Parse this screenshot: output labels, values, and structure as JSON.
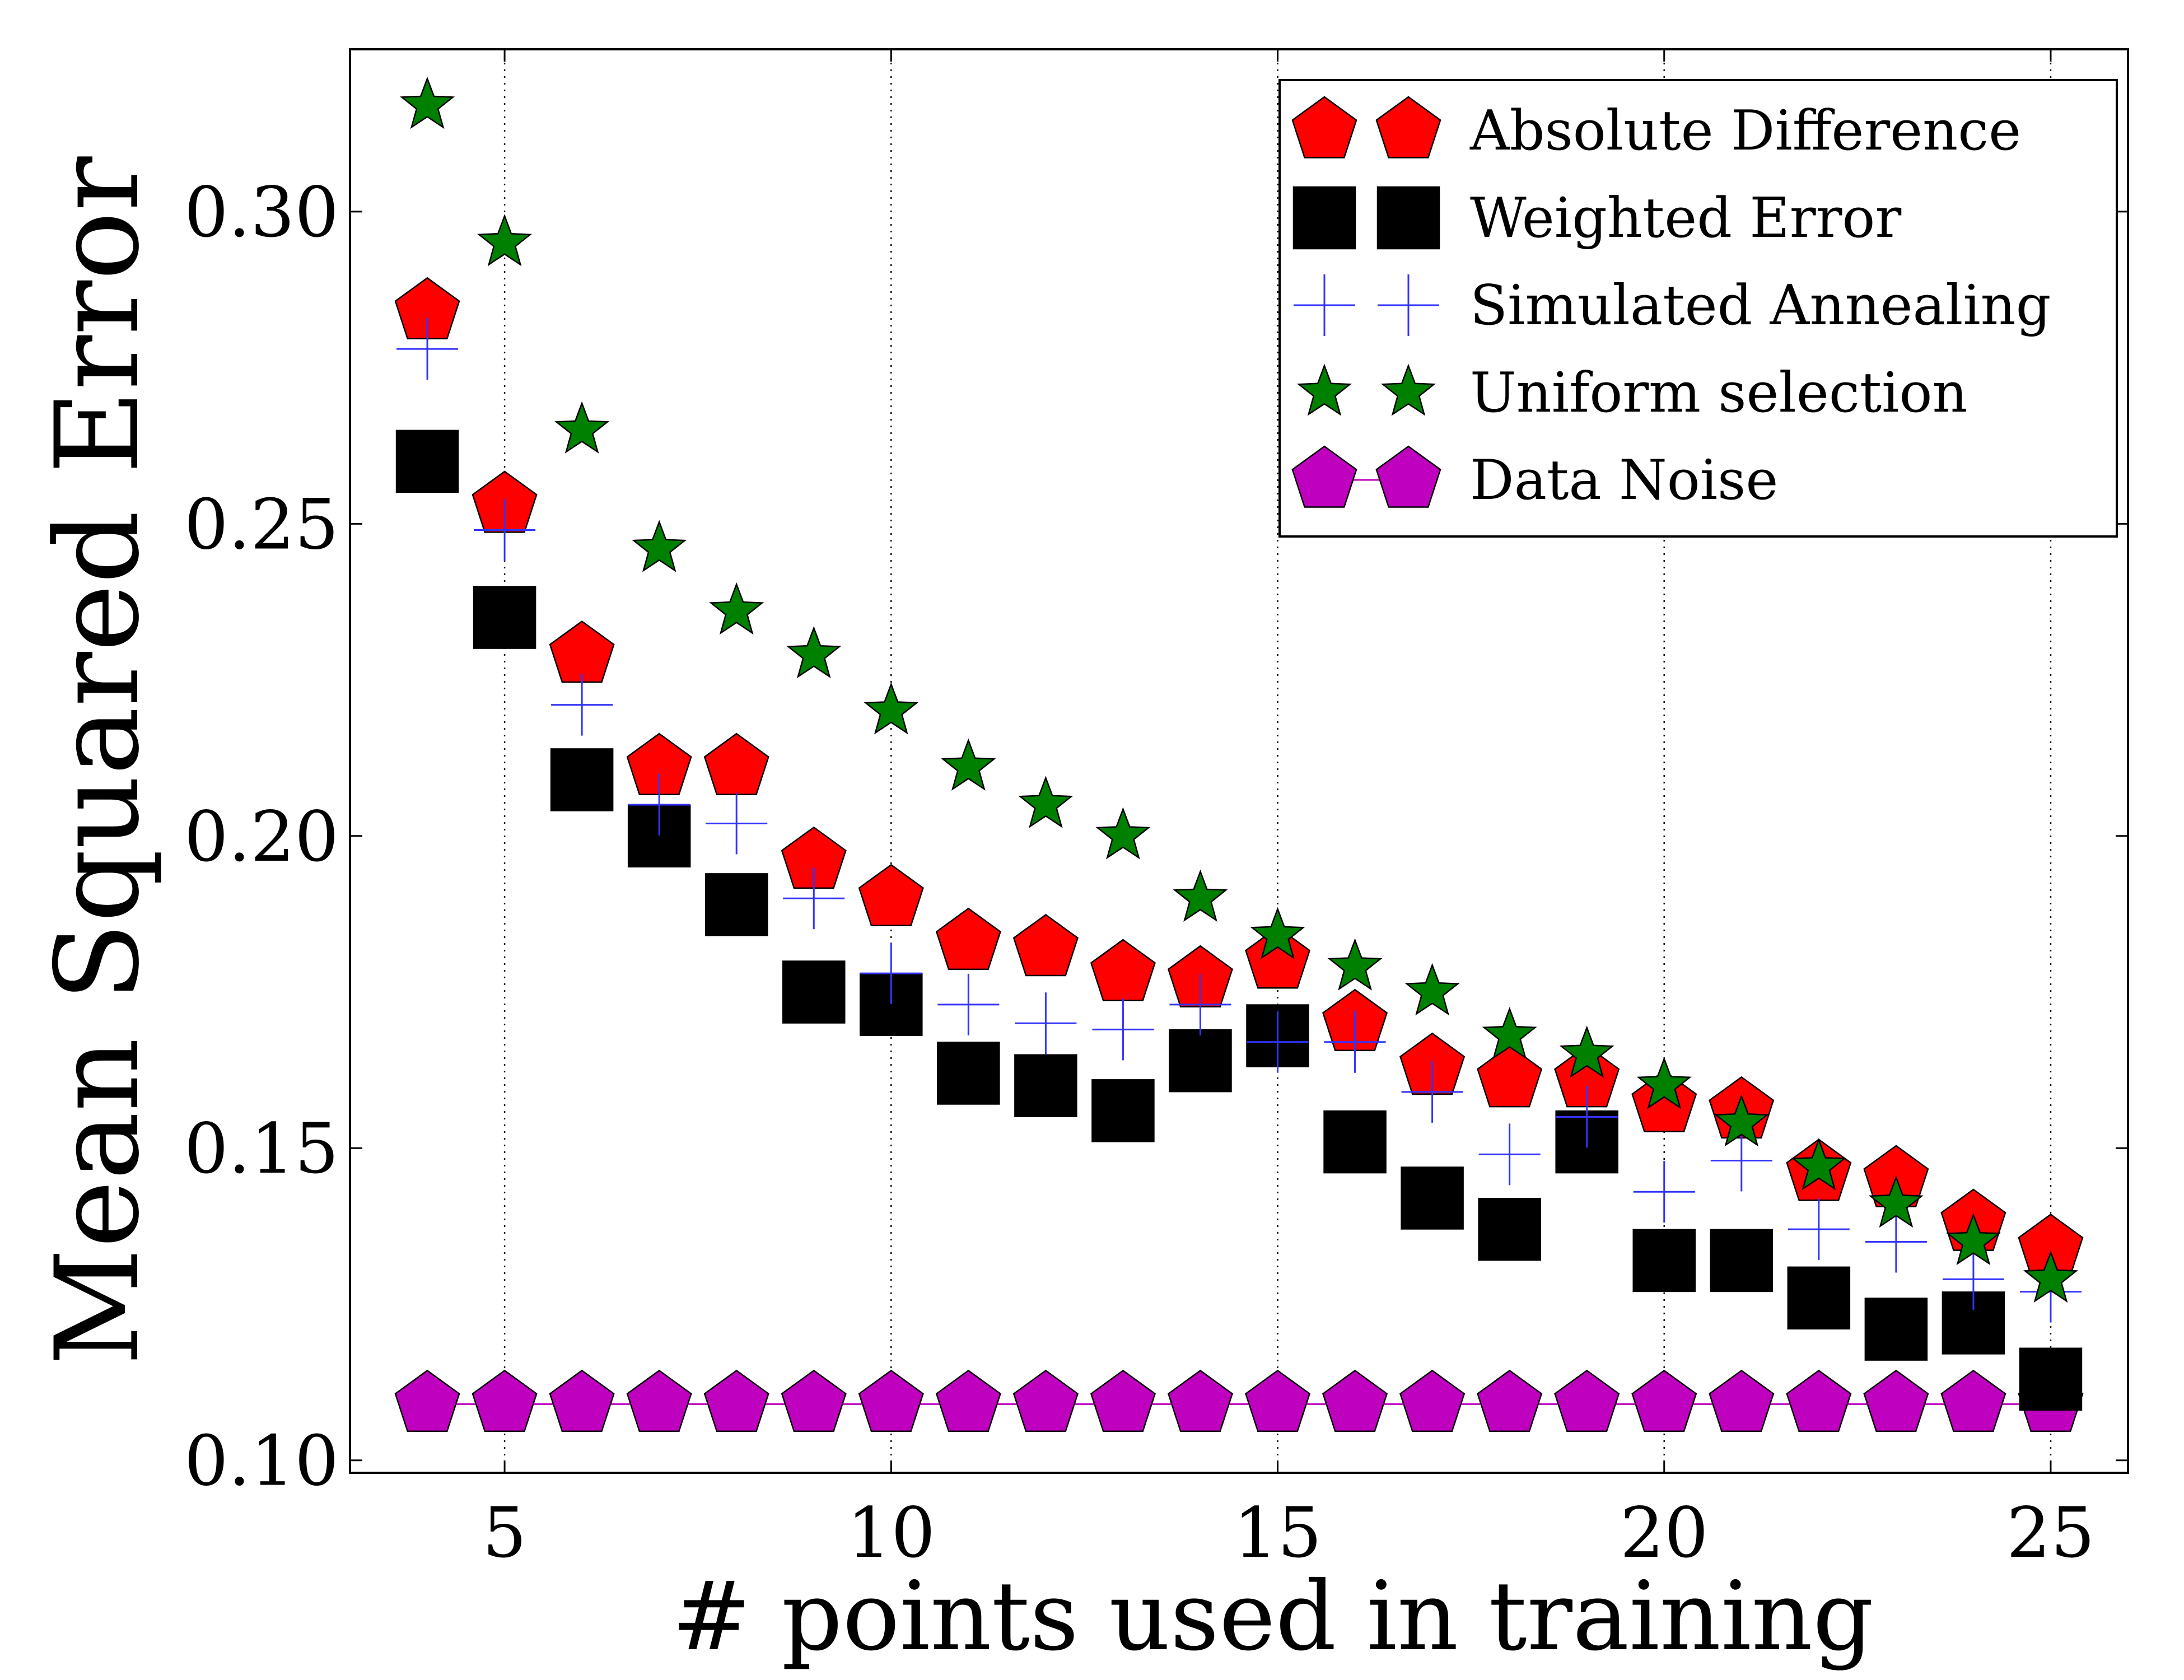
{
  "chart_data": {
    "type": "scatter",
    "xlabel": "# points used in training",
    "ylabel": "Mean Squared Error",
    "xlim": [
      3,
      26
    ],
    "ylim": [
      0.098,
      0.326
    ],
    "xticks": [
      5,
      10,
      15,
      20,
      25
    ],
    "xtick_labels": [
      "5",
      "10",
      "15",
      "20",
      "25"
    ],
    "yticks": [
      0.1,
      0.15,
      0.2,
      0.25,
      0.3
    ],
    "ytick_labels": [
      "0.10",
      "0.15",
      "0.20",
      "0.25",
      "0.30"
    ],
    "grid": "x-dotted",
    "legend_position": "top-right",
    "x": [
      4,
      5,
      6,
      7,
      8,
      9,
      10,
      11,
      12,
      13,
      14,
      15,
      16,
      17,
      18,
      19,
      20,
      21,
      22,
      23,
      24,
      25
    ],
    "series": [
      {
        "name": "Absolute Difference",
        "marker": "pentagon",
        "color": "#ff0000",
        "values": [
          0.284,
          0.253,
          0.229,
          0.211,
          0.211,
          0.196,
          0.19,
          0.183,
          0.182,
          0.178,
          0.177,
          0.18,
          0.17,
          0.163,
          0.161,
          0.161,
          0.157,
          0.156,
          0.146,
          0.145,
          0.138,
          0.134
        ]
      },
      {
        "name": "Weighted Error",
        "marker": "square",
        "color": "#000000",
        "values": [
          0.26,
          0.235,
          0.209,
          0.2,
          0.189,
          0.175,
          0.173,
          0.162,
          0.16,
          0.156,
          0.164,
          0.168,
          0.151,
          0.142,
          0.137,
          0.151,
          0.132,
          0.132,
          0.126,
          0.121,
          0.122,
          0.113
        ]
      },
      {
        "name": "Simulated Annealing",
        "marker": "plus",
        "color": "#3333ff",
        "values": [
          0.278,
          0.249,
          0.221,
          0.205,
          0.202,
          0.19,
          0.178,
          0.173,
          0.17,
          0.169,
          0.173,
          0.167,
          0.167,
          0.159,
          0.149,
          0.155,
          0.143,
          0.148,
          0.137,
          0.135,
          0.129,
          0.127
        ]
      },
      {
        "name": "Uniform selection",
        "marker": "star",
        "color": "#008000",
        "values": [
          0.317,
          0.295,
          0.265,
          0.246,
          0.236,
          0.229,
          0.22,
          0.211,
          0.205,
          0.2,
          0.19,
          0.184,
          0.179,
          0.175,
          0.168,
          0.165,
          0.16,
          0.154,
          0.147,
          0.141,
          0.135,
          0.129
        ]
      },
      {
        "name": "Data Noise",
        "marker": "pentagon",
        "color": "#bf00bf",
        "values": [
          0.109,
          0.109,
          0.109,
          0.109,
          0.109,
          0.109,
          0.109,
          0.109,
          0.109,
          0.109,
          0.109,
          0.109,
          0.109,
          0.109,
          0.109,
          0.109,
          0.109,
          0.109,
          0.109,
          0.109,
          0.109,
          0.109
        ]
      }
    ]
  }
}
